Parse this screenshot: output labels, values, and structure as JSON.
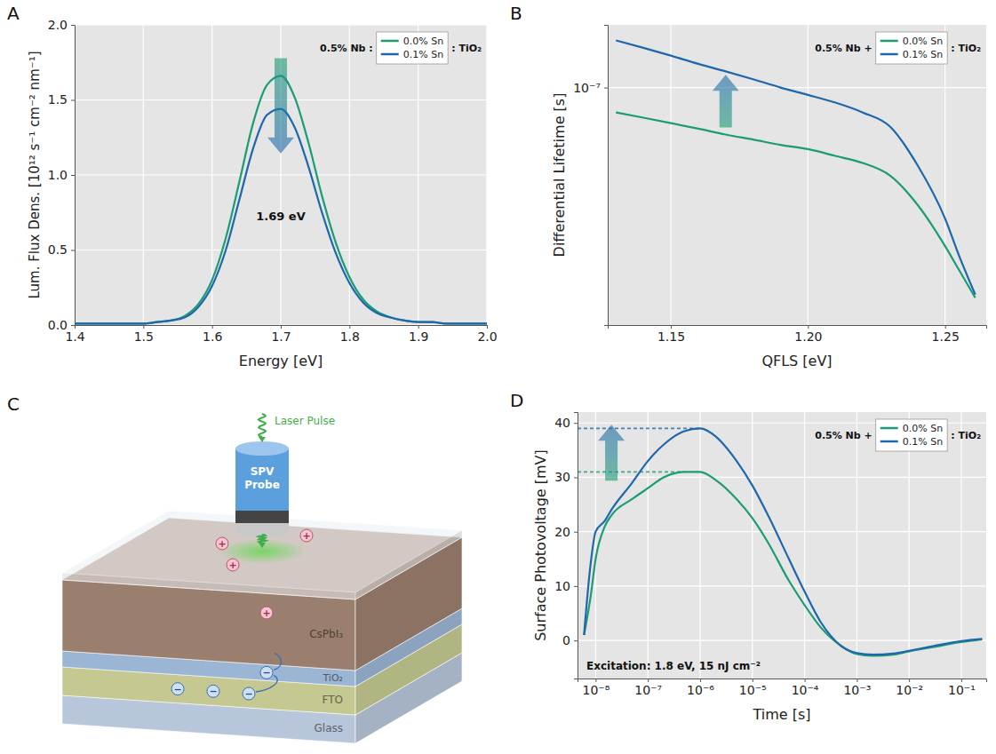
{
  "chart_data": [
    {
      "panel": "A",
      "type": "line",
      "x_label": "Energy [eV]",
      "y_label": "Lum. Flux Dens. [10¹² s⁻¹ cm⁻² nm⁻¹]",
      "x": [
        1.4,
        1.42,
        1.44,
        1.46,
        1.48,
        1.5,
        1.52,
        1.54,
        1.56,
        1.58,
        1.6,
        1.62,
        1.64,
        1.66,
        1.68,
        1.7,
        1.72,
        1.74,
        1.76,
        1.78,
        1.8,
        1.82,
        1.84,
        1.86,
        1.88,
        1.9,
        1.92,
        1.94,
        1.96,
        1.98,
        2.0
      ],
      "series": [
        {
          "name": "0.0% Sn",
          "color": "#1a9c74",
          "values": [
            0.01,
            0.01,
            0.01,
            0.01,
            0.01,
            0.01,
            0.02,
            0.03,
            0.06,
            0.14,
            0.3,
            0.58,
            0.96,
            1.35,
            1.6,
            1.66,
            1.52,
            1.22,
            0.86,
            0.55,
            0.32,
            0.17,
            0.09,
            0.05,
            0.03,
            0.02,
            0.02,
            0.01,
            0.01,
            0.01,
            0.01
          ]
        },
        {
          "name": "0.1% Sn",
          "color": "#1f67ad",
          "values": [
            0.01,
            0.01,
            0.01,
            0.01,
            0.01,
            0.01,
            0.02,
            0.03,
            0.05,
            0.12,
            0.26,
            0.5,
            0.84,
            1.18,
            1.4,
            1.44,
            1.32,
            1.06,
            0.75,
            0.48,
            0.28,
            0.15,
            0.08,
            0.05,
            0.03,
            0.02,
            0.02,
            0.01,
            0.01,
            0.01,
            0.01
          ]
        }
      ],
      "xlim": [
        1.4,
        2.0
      ],
      "xticks": [
        1.4,
        1.5,
        1.6,
        1.7,
        1.8,
        1.9,
        {
          "value": 2.0,
          "label": "2.0"
        }
      ],
      "ylim": [
        0,
        2.0
      ],
      "yticks": [
        {
          "value": 0,
          "label": "0.0"
        },
        0.5,
        {
          "value": 1.0,
          "label": "1.0"
        },
        1.5,
        {
          "value": 2.0,
          "label": "2.0"
        }
      ],
      "grid": true,
      "legend": "top-right",
      "annotations": [
        "0.5% Nb :",
        ": TiO₂",
        "1.69 eV"
      ]
    },
    {
      "panel": "B",
      "type": "line",
      "x_label": "QFLS [eV]",
      "y_label": "Differential Lifetime [s]",
      "x": [
        1.13,
        1.14,
        1.15,
        1.16,
        1.17,
        1.18,
        1.19,
        1.2,
        1.21,
        1.22,
        1.23,
        1.24,
        1.25,
        1.255,
        1.261
      ],
      "series": [
        {
          "name": "0.0% Sn",
          "color": "#1a9c74",
          "values": [
            8.4e-08,
            8.1e-08,
            7.8e-08,
            7.5e-08,
            7.2e-08,
            6.95e-08,
            6.7e-08,
            6.5e-08,
            6.2e-08,
            5.9e-08,
            5.4e-08,
            4.4e-08,
            3.3e-08,
            2.8e-08,
            2.3e-08
          ]
        },
        {
          "name": "0.1% Sn",
          "color": "#1f67ad",
          "values": [
            1.39e-07,
            1.32e-07,
            1.25e-07,
            1.18e-07,
            1.12e-07,
            1.06e-07,
            1e-07,
            9.5e-08,
            9e-08,
            8.4e-08,
            7.6e-08,
            5.8e-08,
            4e-08,
            3.1e-08,
            2.35e-08
          ]
        }
      ],
      "xlim": [
        1.127,
        1.265
      ],
      "xticks": [
        1.15,
        {
          "value": 1.2,
          "label": "1.20"
        },
        1.25
      ],
      "ylim": [
        1.9e-08,
        1.55e-07
      ],
      "yticks": [
        {
          "value": 1e-07,
          "label": "10⁻⁷"
        }
      ],
      "log": "y",
      "grid": true,
      "legend": "top-right",
      "annotations": [
        "0.5% Nb +",
        ": TiO₂"
      ]
    },
    {
      "panel": "D",
      "type": "line",
      "x_label": "Time [s]",
      "y_label": "Surface Photovoltage [mV]",
      "x": [
        6e-09,
        8e-09,
        1e-08,
        1.5e-08,
        2e-08,
        5e-08,
        1e-07,
        2e-07,
        5e-07,
        1e-06,
        2e-06,
        5e-06,
        1e-05,
        2e-05,
        5e-05,
        0.0001,
        0.0002,
        0.0005,
        0.001,
        0.002,
        0.005,
        0.01,
        0.03,
        0.1,
        0.25
      ],
      "series": [
        {
          "name": "0.0% Sn",
          "color": "#1a9c74",
          "values": [
            1,
            8,
            15,
            21,
            23,
            26,
            28,
            30,
            31,
            31,
            29.5,
            26,
            22.5,
            18,
            11,
            6.5,
            2.5,
            -1,
            -2.5,
            -2.8,
            -2.6,
            -2,
            -1.2,
            -0.3,
            0.2
          ]
        },
        {
          "name": "0.1% Sn",
          "color": "#1f67ad",
          "values": [
            1,
            14,
            20,
            22,
            24,
            29,
            33,
            36,
            38.5,
            39,
            37.5,
            33,
            28.5,
            23,
            15,
            9,
            3.5,
            -1,
            -2.3,
            -2.6,
            -2.4,
            -1.9,
            -1,
            -0.1,
            0.3
          ]
        }
      ],
      "xlim": [
        4.5e-09,
        0.3
      ],
      "xticks": [
        {
          "value": 1e-08,
          "label": "10⁻⁸"
        },
        {
          "value": 1e-07,
          "label": "10⁻⁷"
        },
        {
          "value": 1e-06,
          "label": "10⁻⁶"
        },
        {
          "value": 1e-05,
          "label": "10⁻⁵"
        },
        {
          "value": 0.0001,
          "label": "10⁻⁴"
        },
        {
          "value": 0.001,
          "label": "10⁻³"
        },
        {
          "value": 0.01,
          "label": "10⁻²"
        },
        {
          "value": 0.1,
          "label": "10⁻¹"
        }
      ],
      "ylim": [
        -7,
        42
      ],
      "yticks": [
        0,
        10,
        20,
        30,
        40
      ],
      "log": "x",
      "grid": true,
      "legend": "top-right",
      "annotations": [
        "0.5% Nb +",
        ": TiO₂",
        "Excitation: 1.8 eV, 15 nJ cm⁻²"
      ]
    }
  ],
  "diagram": {
    "panel": "C",
    "laser": "Laser Pulse",
    "probe": "SPV Probe",
    "layers": [
      {
        "label": "CsPbI₃",
        "color": "#a98b78"
      },
      {
        "label": "TiO₂",
        "color": "#a9c6e8"
      },
      {
        "label": "FTO",
        "color": "#d7dc9e"
      },
      {
        "label": "Glass",
        "color": "#c9d9ef"
      }
    ],
    "hole": "+",
    "electron": "−"
  }
}
